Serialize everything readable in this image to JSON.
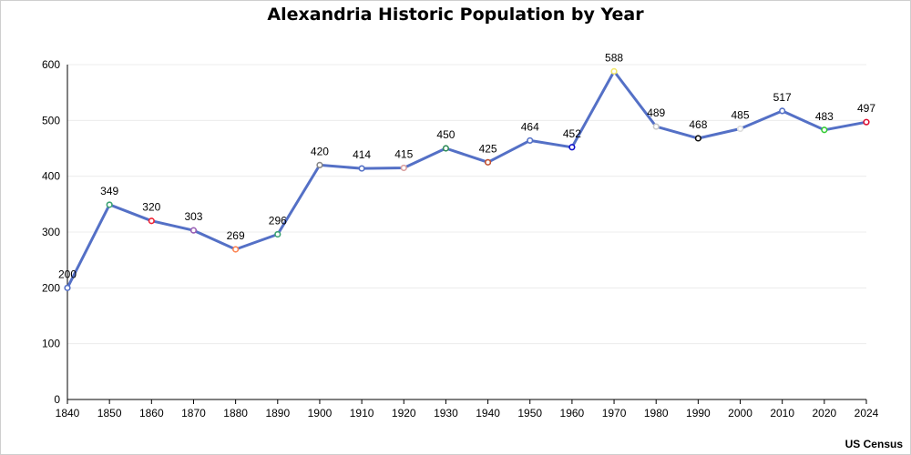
{
  "chart_data": {
    "type": "line",
    "title": "Alexandria Historic Population by Year",
    "source": "US Census",
    "xlabel": "",
    "ylabel": "",
    "ylim": [
      0,
      600
    ],
    "yticks": [
      0,
      100,
      200,
      300,
      400,
      500,
      600
    ],
    "grid": true,
    "line_color": "#5470c6",
    "categories": [
      "1840",
      "1850",
      "1860",
      "1870",
      "1880",
      "1890",
      "1900",
      "1910",
      "1920",
      "1930",
      "1940",
      "1950",
      "1960",
      "1970",
      "1980",
      "1990",
      "2000",
      "2010",
      "2020",
      "2024"
    ],
    "values": [
      200,
      349,
      320,
      303,
      269,
      296,
      420,
      414,
      415,
      450,
      425,
      464,
      452,
      588,
      489,
      468,
      485,
      517,
      483,
      497
    ],
    "point_colors": [
      "#5470c6",
      "#3ba272",
      "#ee2233",
      "#9a60b4",
      "#fc8452",
      "#3ba272",
      "#888888",
      "#5470c6",
      "#d9a0a0",
      "#2e8b57",
      "#c05030",
      "#5470c6",
      "#1010cc",
      "#f2e86a",
      "#c8c8c8",
      "#111111",
      "#dddddd",
      "#5470c6",
      "#33cc33",
      "#dd1133"
    ]
  }
}
